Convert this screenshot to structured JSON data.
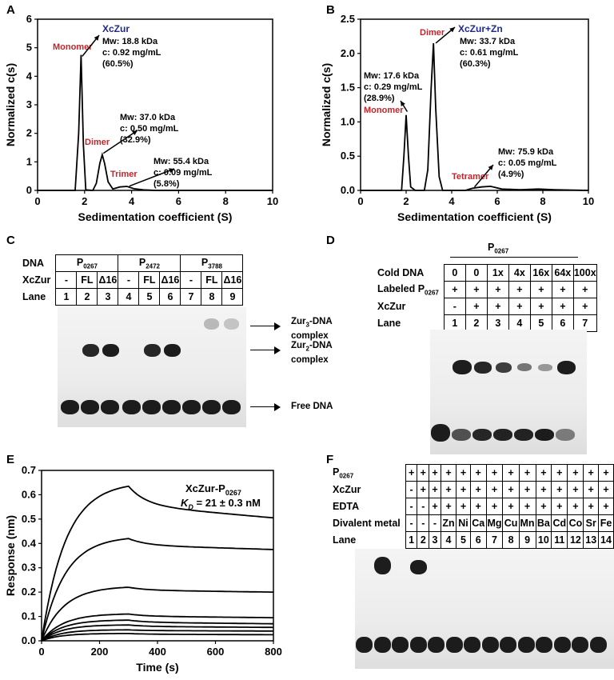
{
  "panels": {
    "A": "A",
    "B": "B",
    "C": "C",
    "D": "D",
    "E": "E",
    "F": "F"
  },
  "chart_data": [
    {
      "panel": "A",
      "type": "line",
      "xlabel": "Sedimentation coefficient (S)",
      "ylabel": "Normalized c(s)",
      "xlim": [
        0,
        10
      ],
      "ylim": [
        0,
        6
      ],
      "xticks": [
        0,
        2,
        4,
        6,
        8,
        10
      ],
      "yticks": [
        0,
        1,
        2,
        3,
        4,
        5,
        6
      ],
      "series": [
        {
          "title_color": "#1f2a8c",
          "points": [
            [
              0,
              0
            ],
            [
              1.6,
              0
            ],
            [
              1.75,
              2.0
            ],
            [
              1.85,
              4.75
            ],
            [
              1.95,
              1.6
            ],
            [
              2.05,
              0.02
            ],
            [
              2.35,
              0
            ],
            [
              2.5,
              0.25
            ],
            [
              2.65,
              0.95
            ],
            [
              2.75,
              1.25
            ],
            [
              2.85,
              0.95
            ],
            [
              3.0,
              0.3
            ],
            [
              3.2,
              0.05
            ],
            [
              3.5,
              0.12
            ],
            [
              3.8,
              0.14
            ],
            [
              4.1,
              0.06
            ],
            [
              4.5,
              0.02
            ],
            [
              5,
              0
            ],
            [
              10,
              0
            ]
          ]
        }
      ],
      "title": "XcZur",
      "annotations": [
        {
          "label": "Monomer",
          "mw": "Mw: 18.8 kDa",
          "c": "c: 0.92 mg/mL",
          "pct": "(60.5%)"
        },
        {
          "label": "Dimer",
          "mw": "Mw: 37.0 kDa",
          "c": "c: 0.50 mg/mL",
          "pct": "(32.9%)"
        },
        {
          "label": "Trimer",
          "mw": "Mw: 55.4 kDa",
          "c": "c: 0.09 mg/mL",
          "pct": "(5.8%)"
        }
      ]
    },
    {
      "panel": "B",
      "type": "line",
      "xlabel": "Sedimentation coefficient (S)",
      "ylabel": "Normalized c(s)",
      "xlim": [
        0,
        10
      ],
      "ylim": [
        0,
        2.5
      ],
      "xticks": [
        0,
        2,
        4,
        6,
        8,
        10
      ],
      "yticks": [
        "0.0",
        "0.5",
        "1.0",
        "1.5",
        "2.0",
        "2.5"
      ],
      "series": [
        {
          "points": [
            [
              0,
              0
            ],
            [
              1.8,
              0
            ],
            [
              1.9,
              0.5
            ],
            [
              2.0,
              1.1
            ],
            [
              2.1,
              0.5
            ],
            [
              2.2,
              0.05
            ],
            [
              2.4,
              0
            ],
            [
              2.8,
              0
            ],
            [
              2.95,
              0.3
            ],
            [
              3.1,
              1.5
            ],
            [
              3.2,
              2.15
            ],
            [
              3.3,
              1.2
            ],
            [
              3.45,
              0.2
            ],
            [
              3.6,
              0
            ],
            [
              4.6,
              0
            ],
            [
              4.9,
              0.03
            ],
            [
              5.3,
              0.05
            ],
            [
              5.7,
              0.06
            ],
            [
              6.2,
              0.02
            ],
            [
              7,
              0.01
            ],
            [
              7.8,
              0.02
            ],
            [
              8.5,
              0.01
            ],
            [
              10,
              0
            ]
          ]
        }
      ],
      "title": "XcZur+Zn",
      "annotations": [
        {
          "label": "Monomer",
          "mw": "Mw: 17.6 kDa",
          "c": "c: 0.29 mg/mL",
          "pct": "(28.9%)"
        },
        {
          "label": "Dimer",
          "mw": "Mw: 33.7 kDa",
          "c": "c: 0.61 mg/mL",
          "pct": "(60.3%)"
        },
        {
          "label": "Tetramer",
          "mw": "Mw: 75.9 kDa",
          "c": "c: 0.05 mg/mL",
          "pct": "(4.9%)"
        }
      ]
    },
    {
      "panel": "E",
      "type": "line",
      "xlabel": "Time (s)",
      "ylabel": "Response (nm)",
      "xlim": [
        0,
        800
      ],
      "ylim": [
        0,
        0.7
      ],
      "xticks": [
        0,
        200,
        400,
        600,
        800
      ],
      "yticks": [
        "0.0",
        "0.1",
        "0.2",
        "0.3",
        "0.4",
        "0.5",
        "0.6",
        "0.7"
      ],
      "title": "XcZur-P0267",
      "kd": "= 21 ± 0.3 nM",
      "series": [
        {
          "peak": 0.635,
          "end": 0.505
        },
        {
          "peak": 0.42,
          "end": 0.375
        },
        {
          "peak": 0.22,
          "end": 0.2
        },
        {
          "peak": 0.11,
          "end": 0.095
        },
        {
          "peak": 0.085,
          "end": 0.07
        },
        {
          "peak": 0.065,
          "end": 0.055
        },
        {
          "peak": 0.045,
          "end": 0.04
        },
        {
          "peak": 0.03,
          "end": 0.025
        }
      ]
    }
  ],
  "panelC": {
    "row_labels": [
      "DNA",
      "XcZur",
      "Lane"
    ],
    "dna": [
      "P",
      "P",
      "P"
    ],
    "dna_sub": [
      "0267",
      "2472",
      "3788"
    ],
    "xczur": [
      "-",
      "FL",
      "Δ16",
      "-",
      "FL",
      "Δ16",
      "-",
      "FL",
      "Δ16"
    ],
    "lanes": [
      "1",
      "2",
      "3",
      "4",
      "5",
      "6",
      "7",
      "8",
      "9"
    ],
    "arrows": [
      {
        "line1": "Zur",
        "sub": "3",
        "line1b": "-DNA",
        "line2": "complex"
      },
      {
        "line1": "Zur",
        "sub": "2",
        "line1b": "-DNA",
        "line2": "complex"
      },
      {
        "line1": "Free DNA",
        "sub": "",
        "line1b": "",
        "line2": ""
      }
    ]
  },
  "panelD": {
    "header": "P",
    "header_sub": "0267",
    "row_labels": [
      "Cold DNA",
      "Labeled P",
      "XcZur",
      "Lane"
    ],
    "row_label_sub": "0267",
    "cold": [
      "0",
      "0",
      "1x",
      "4x",
      "16x",
      "64x",
      "100x"
    ],
    "labeled": [
      "+",
      "+",
      "+",
      "+",
      "+",
      "+",
      "+"
    ],
    "xczur": [
      "-",
      "+",
      "+",
      "+",
      "+",
      "+",
      "+"
    ],
    "lanes": [
      "1",
      "2",
      "3",
      "4",
      "5",
      "6",
      "7"
    ]
  },
  "panelF": {
    "row_labels": [
      "P",
      "XcZur",
      "EDTA",
      "Divalent metal",
      "Lane"
    ],
    "p_sub": "0267",
    "p": [
      "+",
      "+",
      "+",
      "+",
      "+",
      "+",
      "+",
      "+",
      "+",
      "+",
      "+",
      "+",
      "+",
      "+"
    ],
    "xczur": [
      "-",
      "+",
      "+",
      "+",
      "+",
      "+",
      "+",
      "+",
      "+",
      "+",
      "+",
      "+",
      "+",
      "+"
    ],
    "edta": [
      "-",
      "-",
      "+",
      "+",
      "+",
      "+",
      "+",
      "+",
      "+",
      "+",
      "+",
      "+",
      "+",
      "+"
    ],
    "metal": [
      "-",
      "-",
      "-",
      "Zn",
      "Ni",
      "Ca",
      "Mg",
      "Cu",
      "Mn",
      "Ba",
      "Cd",
      "Co",
      "Sr",
      "Fe"
    ],
    "lanes": [
      "1",
      "2",
      "3",
      "4",
      "5",
      "6",
      "7",
      "8",
      "9",
      "10",
      "11",
      "12",
      "13",
      "14"
    ]
  }
}
